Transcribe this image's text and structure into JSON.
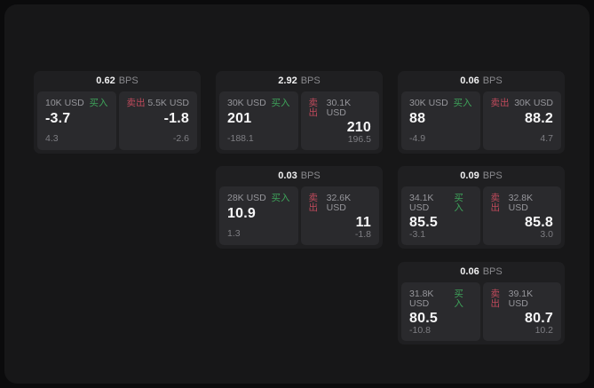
{
  "labels": {
    "bps_unit": "BPS",
    "buy": "买入",
    "sell": "卖出"
  },
  "colors": {
    "panel_bg": "#171718",
    "card_bg": "#1f1f21",
    "pane_bg": "#2a2a2d",
    "buy_green": "#3ea35a",
    "sell_red": "#c04a5c"
  },
  "cards": [
    {
      "bps": "0.62",
      "buy": {
        "amount": "10K USD",
        "price": "-3.7",
        "delta": "4.3"
      },
      "sell": {
        "amount": "5.5K USD",
        "price": "-1.8",
        "delta": "-2.6"
      }
    },
    {
      "bps": "2.92",
      "buy": {
        "amount": "30K USD",
        "price": "201",
        "delta": "-188.1"
      },
      "sell": {
        "amount": "30.1K USD",
        "price": "210",
        "delta": "196.5"
      }
    },
    {
      "bps": "0.06",
      "buy": {
        "amount": "30K USD",
        "price": "88",
        "delta": "-4.9"
      },
      "sell": {
        "amount": "30K USD",
        "price": "88.2",
        "delta": "4.7"
      }
    },
    {
      "bps": "0.03",
      "buy": {
        "amount": "28K USD",
        "price": "10.9",
        "delta": "1.3"
      },
      "sell": {
        "amount": "32.6K USD",
        "price": "11",
        "delta": "-1.8"
      }
    },
    {
      "bps": "0.09",
      "buy": {
        "amount": "34.1K USD",
        "price": "85.5",
        "delta": "-3.1"
      },
      "sell": {
        "amount": "32.8K USD",
        "price": "85.8",
        "delta": "3.0"
      }
    },
    {
      "bps": "0.06",
      "buy": {
        "amount": "31.8K USD",
        "price": "80.5",
        "delta": "-10.8"
      },
      "sell": {
        "amount": "39.1K USD",
        "price": "80.7",
        "delta": "10.2"
      }
    }
  ]
}
